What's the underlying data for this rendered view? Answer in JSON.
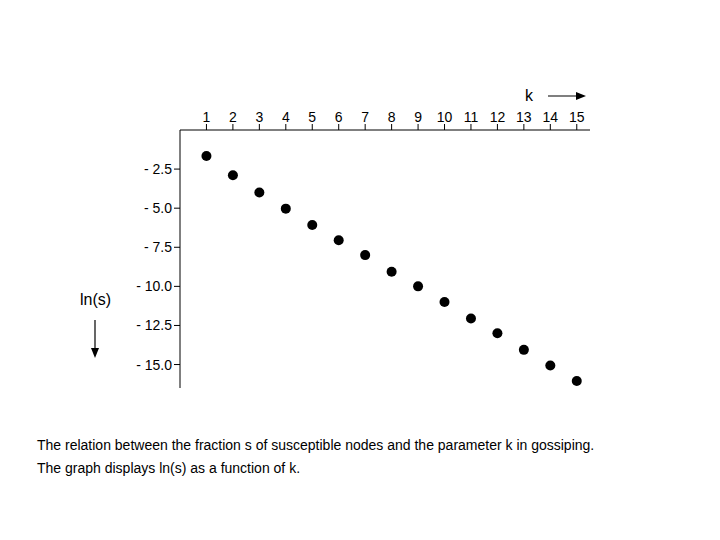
{
  "chart_data": {
    "type": "scatter",
    "x_label": "k",
    "y_label": "ln(s)",
    "caption": [
      "The relation between the fraction s of susceptible nodes and the parameter k in gossiping.",
      "The graph displays ln(s) as a function of k."
    ],
    "x": [
      1,
      2,
      3,
      4,
      5,
      6,
      7,
      8,
      9,
      10,
      11,
      12,
      13,
      14,
      15
    ],
    "values": [
      -1.66,
      -2.89,
      -4.0,
      -5.03,
      -6.07,
      -7.05,
      -8.0,
      -9.06,
      -10.0,
      -11.0,
      -12.05,
      -13.0,
      -14.06,
      -15.06,
      -16.05
    ],
    "color": "#000000",
    "marker": "circle",
    "xlim": [
      0,
      15.5
    ],
    "xticks": [
      1,
      2,
      3,
      4,
      5,
      6,
      7,
      8,
      9,
      10,
      11,
      12,
      13,
      14,
      15
    ],
    "ylim": [
      -16.5,
      0
    ],
    "yticks": [
      {
        "value": -2.5,
        "label": "- 2.5"
      },
      {
        "value": -5.0,
        "label": "- 5.0"
      },
      {
        "value": -7.5,
        "label": "- 7.5"
      },
      {
        "value": -10.0,
        "label": "- 10.0"
      },
      {
        "value": -12.5,
        "label": "- 12.5"
      },
      {
        "value": -15.0,
        "label": "- 15.0"
      }
    ],
    "grid": false
  }
}
